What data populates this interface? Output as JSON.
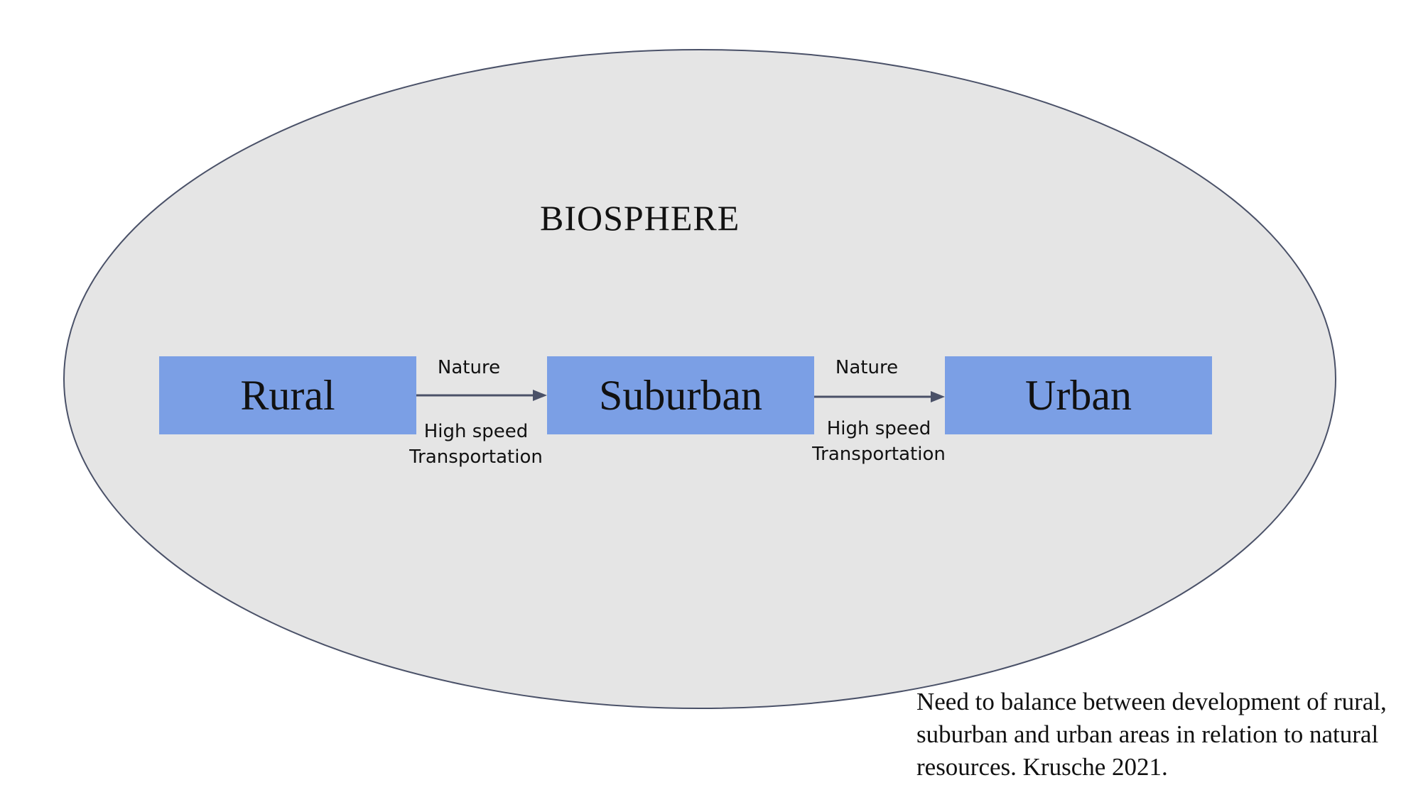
{
  "diagram": {
    "title": "BIOSPHERE",
    "nodes": [
      {
        "id": "rural",
        "label": "Rural"
      },
      {
        "id": "suburban",
        "label": "Suburban"
      },
      {
        "id": "urban",
        "label": "Urban"
      }
    ],
    "edges": [
      {
        "from": "rural",
        "to": "suburban",
        "label_top": "Nature",
        "label_bottom_line1": "High speed",
        "label_bottom_line2": "Transportation"
      },
      {
        "from": "suburban",
        "to": "urban",
        "label_top": "Nature",
        "label_bottom_line1": "High speed",
        "label_bottom_line2": "Transportation"
      }
    ],
    "caption_line1": "Need to balance between development of rural,",
    "caption_line2": "suburban and urban areas in relation to natural",
    "caption_line3": "resources. Krusche 2021."
  },
  "colors": {
    "ellipse_fill": "#e5e5e5",
    "ellipse_stroke": "#4a5168",
    "box_fill": "#7b9fe5",
    "arrow": "#4a5168"
  }
}
